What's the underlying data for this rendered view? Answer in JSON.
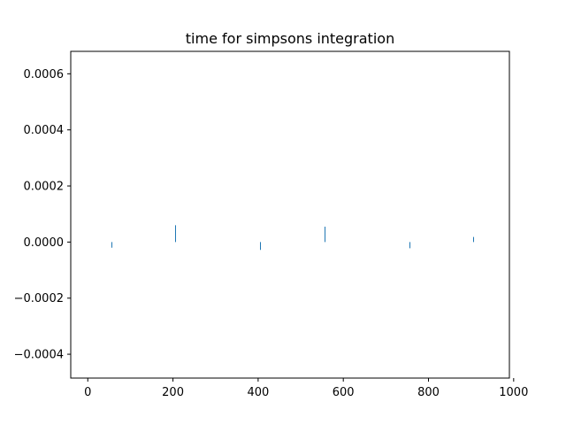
{
  "chart_data": {
    "type": "bar",
    "title": "time for simpsons integration",
    "xlabel": "",
    "ylabel": "",
    "xlim": [
      -40,
      990
    ],
    "ylim": [
      -0.000485,
      0.00068
    ],
    "x_ticks": [
      0,
      200,
      400,
      600,
      800,
      1000
    ],
    "x_tick_labels": [
      "0",
      "200",
      "400",
      "600",
      "800",
      "1000"
    ],
    "y_ticks": [
      -0.0004,
      -0.0002,
      0.0,
      0.0002,
      0.0004,
      0.0006
    ],
    "y_tick_labels": [
      "−0.0004",
      "−0.0002",
      "0.0000",
      "0.0002",
      "0.0004",
      "0.0006"
    ],
    "grid": false,
    "series": [
      {
        "color": "#1f77b4",
        "x": [
          55,
          205,
          405,
          555,
          755,
          905
        ],
        "values": [
          -2e-05,
          6e-05,
          -2.8e-05,
          5.5e-05,
          -2.2e-05,
          1.8e-05
        ]
      }
    ]
  }
}
